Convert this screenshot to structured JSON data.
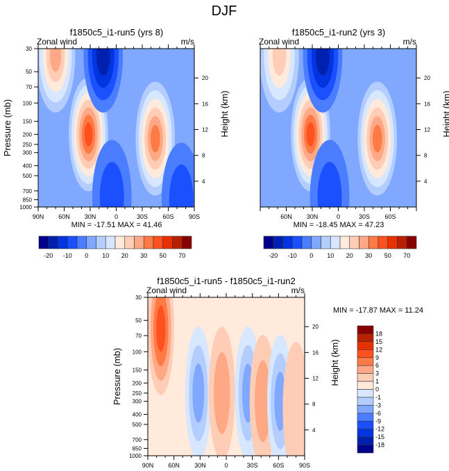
{
  "figure_title": "DJF",
  "palette": [
    "#00008a",
    "#0020b0",
    "#0035e0",
    "#1a50ff",
    "#4a7dff",
    "#80a8ff",
    "#b3cdff",
    "#d6e7ff",
    "#ffeadb",
    "#ffcdb5",
    "#ffa886",
    "#ff7a45",
    "#ff5020",
    "#e83000",
    "#b82000",
    "#8a0000"
  ],
  "chart_data": [
    {
      "type": "heatmap",
      "panel": "top-left",
      "title": "f1850c5_i1-run5 (yrs 8)",
      "left_label": "Zonal wind",
      "right_label": "m/s",
      "xlabel": "",
      "ylabel": "Pressure (mb)",
      "ylabel_right": "Height (km)",
      "x_ticks": [
        "90N",
        "60N",
        "30N",
        "0",
        "30S",
        "60S",
        "90S"
      ],
      "x_range": [
        90,
        -90
      ],
      "y_ticks": [
        "30",
        "50",
        "70",
        "100",
        "150",
        "200",
        "250",
        "300",
        "400",
        "500",
        "700",
        "850",
        "1000"
      ],
      "y_range_mb": [
        30,
        1000
      ],
      "y_right_ticks": [
        "20",
        "16",
        "12",
        "8",
        "4"
      ],
      "stats": "MIN = -17.51  MAX =  41.46",
      "min": -17.51,
      "max": 41.46,
      "background_level": 5,
      "features": [
        {
          "lat": 70,
          "p": 35,
          "level": 10,
          "desc": "upper-level westerly max NH"
        },
        {
          "lat": 32,
          "p": 200,
          "level": 12,
          "desc": "NH subtropical jet"
        },
        {
          "lat": -45,
          "p": 220,
          "level": 11,
          "desc": "SH jet"
        },
        {
          "lat": 15,
          "p": 35,
          "level": 1,
          "desc": "tropical stratospheric easterlies"
        },
        {
          "lat": 5,
          "p": 800,
          "level": 3,
          "desc": "surface easterlies"
        },
        {
          "lat": -75,
          "p": 850,
          "level": 3,
          "desc": "polar surface easterlies"
        }
      ],
      "colorbar": {
        "orientation": "horizontal",
        "labels": [
          "-20",
          "-10",
          "0",
          "10",
          "20",
          "30",
          "50",
          "70"
        ],
        "levels": [
          -25,
          -20,
          -15,
          -10,
          -5,
          0,
          5,
          10,
          15,
          20,
          25,
          30,
          40,
          50,
          60,
          70
        ]
      }
    },
    {
      "type": "heatmap",
      "panel": "top-right",
      "title": "f1850c5_i1-run2 (yrs 3)",
      "left_label": "Zonal wind",
      "right_label": "m/s",
      "xlabel": "",
      "ylabel": "",
      "ylabel_right": "Height (km)",
      "x_ticks": [
        "60N",
        "30N",
        "0",
        "30S",
        "60S"
      ],
      "x_range": [
        90,
        -90
      ],
      "y_ticks": [],
      "y_right_ticks": [
        "20",
        "16",
        "12",
        "8",
        "4"
      ],
      "stats": "MIN = -18.45  MAX =  47.23",
      "min": -18.45,
      "max": 47.23,
      "background_level": 5,
      "features": [
        {
          "lat": 68,
          "p": 35,
          "level": 9,
          "desc": "upper-level westerly max NH"
        },
        {
          "lat": 32,
          "p": 200,
          "level": 12,
          "desc": "NH subtropical jet"
        },
        {
          "lat": -45,
          "p": 220,
          "level": 11,
          "desc": "SH jet"
        },
        {
          "lat": 18,
          "p": 35,
          "level": 1,
          "desc": "tropical stratospheric easterlies"
        },
        {
          "lat": 10,
          "p": 800,
          "level": 3,
          "desc": "surface easterlies"
        }
      ],
      "colorbar": {
        "orientation": "horizontal",
        "labels": [
          "-20",
          "-10",
          "0",
          "10",
          "20",
          "30",
          "50",
          "70"
        ],
        "levels": [
          -25,
          -20,
          -15,
          -10,
          -5,
          0,
          5,
          10,
          15,
          20,
          25,
          30,
          40,
          50,
          60,
          70
        ]
      }
    },
    {
      "type": "heatmap",
      "panel": "bottom",
      "title": "f1850c5_i1-run5 - f1850c5_i1-run2",
      "left_label": "Zonal wind",
      "right_label": "m/s",
      "xlabel": "",
      "ylabel": "Pressure (mb)",
      "ylabel_right": "Height (km)",
      "x_ticks": [
        "90N",
        "60N",
        "30N",
        "0",
        "30S",
        "60S",
        "90S"
      ],
      "x_range": [
        90,
        -90
      ],
      "y_ticks": [
        "30",
        "50",
        "70",
        "100",
        "150",
        "200",
        "250",
        "300",
        "400",
        "500",
        "700",
        "850",
        "1000"
      ],
      "y_right_ticks": [
        "20",
        "16",
        "12",
        "8",
        "4"
      ],
      "stats": "MIN = -17.87  MAX =  11.24",
      "min": -17.87,
      "max": 11.24,
      "background_level": 8,
      "features": [
        {
          "lat": 75,
          "p": 60,
          "level": 12,
          "desc": "positive diff NH high lat"
        },
        {
          "lat": 32,
          "p": 250,
          "level": 5,
          "desc": "negative diff NH subtropics"
        },
        {
          "lat": 5,
          "p": 250,
          "level": 10,
          "desc": "positive diff tropics"
        },
        {
          "lat": -25,
          "p": 250,
          "level": 5,
          "desc": "negative diff"
        },
        {
          "lat": -42,
          "p": 300,
          "level": 10,
          "desc": "positive diff SH"
        },
        {
          "lat": -62,
          "p": 300,
          "level": 5,
          "desc": "negative diff SH high lat"
        },
        {
          "lat": -80,
          "p": 350,
          "level": 9,
          "desc": "positive diff SH polar"
        }
      ],
      "colorbar": {
        "orientation": "vertical",
        "labels": [
          "18",
          "15",
          "12",
          "9",
          "6",
          "3",
          "1",
          "0",
          "-1",
          "-3",
          "-6",
          "-9",
          "-12",
          "-15",
          "-18"
        ],
        "levels": [
          -18,
          -15,
          -12,
          -9,
          -6,
          -3,
          -1,
          0,
          1,
          3,
          6,
          9,
          12,
          15,
          18
        ]
      }
    }
  ]
}
